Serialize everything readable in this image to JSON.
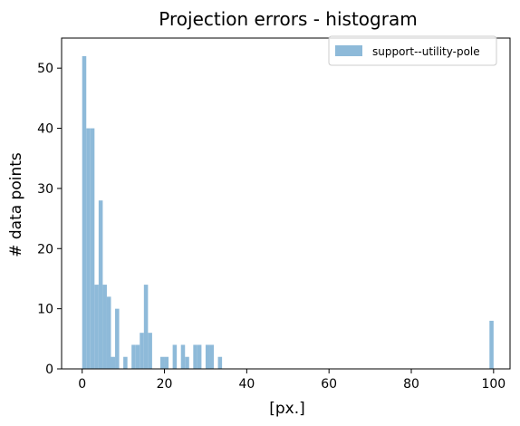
{
  "chart_data": {
    "type": "bar",
    "title": "Projection errors - histogram",
    "xlabel": "[px.]",
    "ylabel": "# data points",
    "xlim": [
      -5,
      104
    ],
    "ylim": [
      0,
      55
    ],
    "xticks": [
      0,
      20,
      40,
      60,
      80,
      100
    ],
    "yticks": [
      0,
      10,
      20,
      30,
      40,
      50
    ],
    "grid": false,
    "legend_position": "top-right",
    "bin_width": 1,
    "series": [
      {
        "name": "support--utility-pole",
        "color": "#8ebad9",
        "bins": [
          {
            "x": 0,
            "value": 52
          },
          {
            "x": 1,
            "value": 40
          },
          {
            "x": 2,
            "value": 40
          },
          {
            "x": 3,
            "value": 14
          },
          {
            "x": 4,
            "value": 28
          },
          {
            "x": 5,
            "value": 14
          },
          {
            "x": 6,
            "value": 12
          },
          {
            "x": 7,
            "value": 2
          },
          {
            "x": 8,
            "value": 10
          },
          {
            "x": 10,
            "value": 2
          },
          {
            "x": 12,
            "value": 4
          },
          {
            "x": 13,
            "value": 4
          },
          {
            "x": 14,
            "value": 6
          },
          {
            "x": 15,
            "value": 14
          },
          {
            "x": 16,
            "value": 6
          },
          {
            "x": 19,
            "value": 2
          },
          {
            "x": 20,
            "value": 2
          },
          {
            "x": 22,
            "value": 4
          },
          {
            "x": 24,
            "value": 4
          },
          {
            "x": 25,
            "value": 2
          },
          {
            "x": 27,
            "value": 4
          },
          {
            "x": 28,
            "value": 4
          },
          {
            "x": 30,
            "value": 4
          },
          {
            "x": 31,
            "value": 4
          },
          {
            "x": 33,
            "value": 2
          },
          {
            "x": 99,
            "value": 8
          }
        ]
      }
    ]
  }
}
